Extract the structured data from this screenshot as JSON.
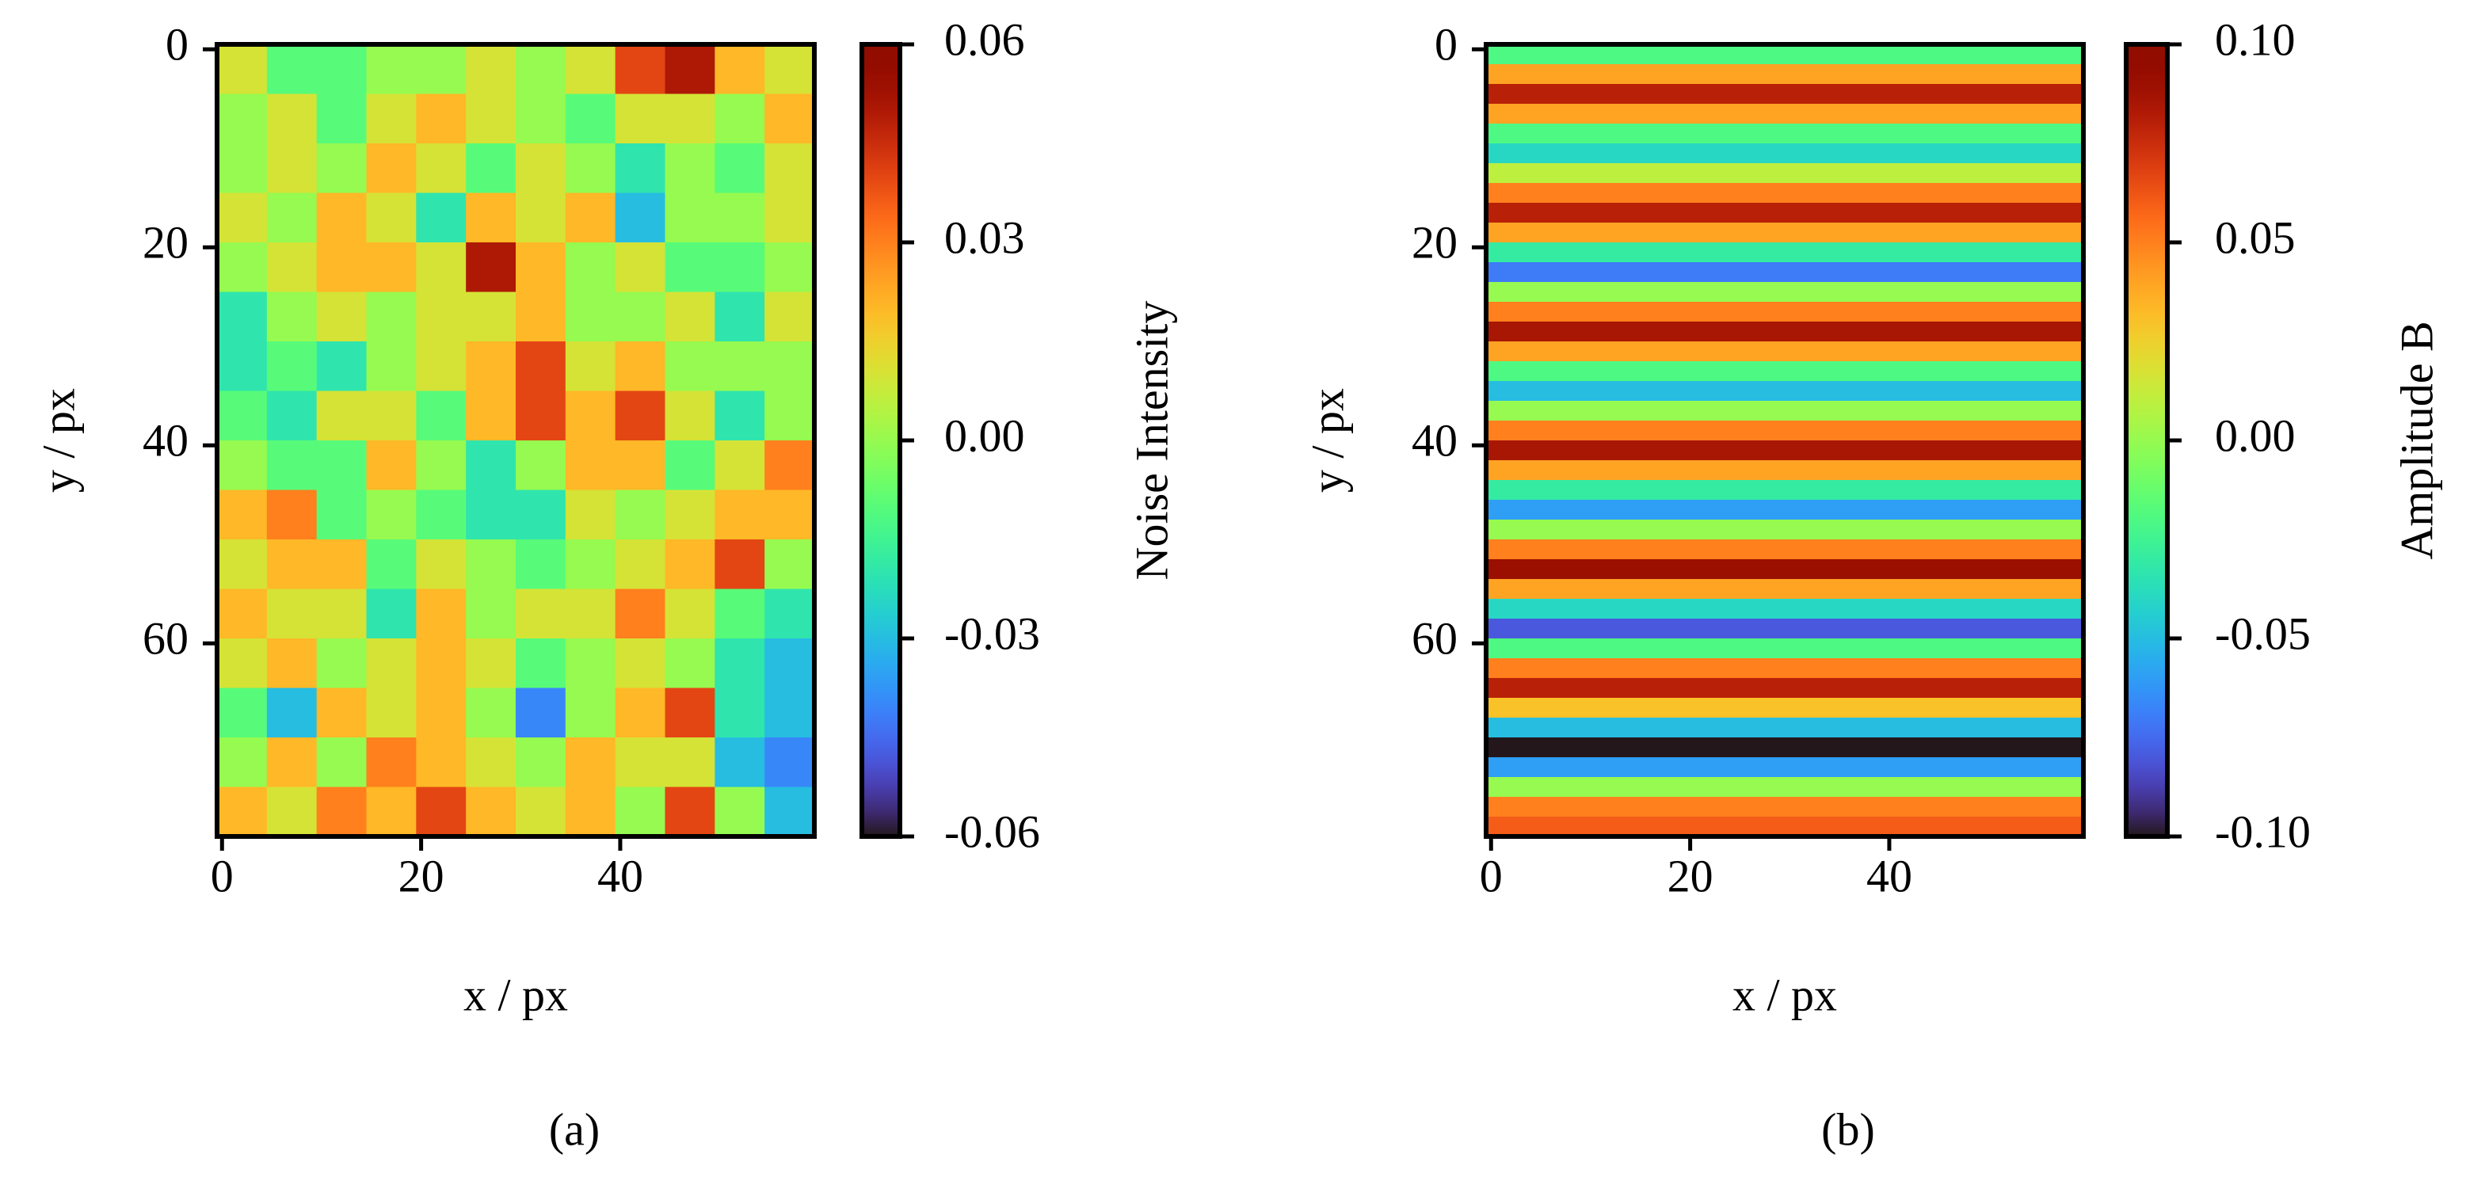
{
  "chart_data": [
    {
      "type": "heatmap",
      "colormap": "turbo",
      "xlabel": "x / px",
      "ylabel": "y / px",
      "colorbar_label": "Noise Intensity",
      "caption": "(a)",
      "xlim": [
        -0.5,
        59.5
      ],
      "ylim": [
        79.5,
        -0.5
      ],
      "xticks": [
        0,
        20,
        40
      ],
      "yticks": [
        0,
        20,
        40,
        60
      ],
      "x_bins": [
        -0.5,
        4.5,
        9.5,
        14.5,
        19.5,
        24.5,
        29.5,
        34.5,
        39.5,
        44.5,
        49.5,
        54.5,
        59.5
      ],
      "y_bins": [
        -0.5,
        4.5,
        9.5,
        14.5,
        19.5,
        24.5,
        29.5,
        34.5,
        39.5,
        44.5,
        49.5,
        54.5,
        59.5,
        64.5,
        69.5,
        74.5,
        79.5
      ],
      "clim": [
        -0.06,
        0.06
      ],
      "cticks": [
        0.06,
        0.03,
        {
          "value": 0,
          "label": "0.00"
        },
        -0.03,
        -0.06
      ],
      "z": [
        [
          0.01,
          -0.01,
          -0.01,
          0.0,
          0.0,
          0.01,
          0.0,
          0.01,
          0.04,
          0.05,
          0.02,
          0.01
        ],
        [
          0.0,
          0.01,
          -0.01,
          0.01,
          0.02,
          0.01,
          0.0,
          -0.01,
          0.01,
          0.01,
          0.0,
          0.02
        ],
        [
          0.0,
          0.01,
          0.0,
          0.02,
          0.01,
          -0.01,
          0.01,
          0.0,
          -0.02,
          0.0,
          -0.01,
          0.01
        ],
        [
          0.01,
          0.0,
          0.02,
          0.01,
          -0.02,
          0.02,
          0.01,
          0.02,
          -0.03,
          0.0,
          0.0,
          0.01
        ],
        [
          0.0,
          0.01,
          0.02,
          0.02,
          0.01,
          0.05,
          0.02,
          0.0,
          0.01,
          -0.01,
          -0.01,
          0.0
        ],
        [
          -0.02,
          0.0,
          0.01,
          0.0,
          0.01,
          0.01,
          0.02,
          0.0,
          0.0,
          0.01,
          -0.02,
          0.01
        ],
        [
          -0.02,
          -0.01,
          -0.02,
          0.0,
          0.01,
          0.02,
          0.04,
          0.01,
          0.02,
          0.0,
          0.0,
          0.0
        ],
        [
          -0.01,
          -0.02,
          0.01,
          0.01,
          -0.01,
          0.02,
          0.04,
          0.02,
          0.04,
          0.01,
          -0.02,
          0.0
        ],
        [
          0.0,
          -0.01,
          -0.01,
          0.02,
          0.0,
          -0.02,
          0.0,
          0.02,
          0.02,
          -0.01,
          0.01,
          0.03
        ],
        [
          0.02,
          0.03,
          -0.01,
          0.0,
          -0.01,
          -0.02,
          -0.02,
          0.01,
          0.0,
          0.01,
          0.02,
          0.02
        ],
        [
          0.01,
          0.02,
          0.02,
          -0.01,
          0.01,
          0.0,
          -0.01,
          0.0,
          0.01,
          0.02,
          0.04,
          0.0
        ],
        [
          0.02,
          0.01,
          0.01,
          -0.02,
          0.02,
          0.0,
          0.01,
          0.01,
          0.03,
          0.01,
          -0.01,
          -0.02
        ],
        [
          0.01,
          0.02,
          0.0,
          0.01,
          0.02,
          0.01,
          -0.01,
          0.0,
          0.01,
          0.0,
          -0.02,
          -0.03
        ],
        [
          -0.01,
          -0.03,
          0.02,
          0.01,
          0.02,
          0.0,
          -0.04,
          0.0,
          0.02,
          0.04,
          -0.02,
          -0.03
        ],
        [
          0.0,
          0.02,
          0.0,
          0.03,
          0.02,
          0.01,
          0.0,
          0.02,
          0.01,
          0.01,
          -0.03,
          -0.04
        ],
        [
          0.02,
          0.01,
          0.03,
          0.02,
          0.04,
          0.02,
          0.01,
          0.02,
          0.0,
          0.04,
          0.0,
          -0.03
        ]
      ]
    },
    {
      "type": "heatmap",
      "colormap": "turbo",
      "xlabel": "x / px",
      "ylabel": "y / px",
      "colorbar_label": "Amplitude B",
      "caption": "(b)",
      "xlim": [
        -0.5,
        59.5
      ],
      "ylim": [
        79.5,
        -0.5
      ],
      "xticks": [
        0,
        20,
        40
      ],
      "yticks": [
        0,
        20,
        40,
        60
      ],
      "x_bins": [
        -0.5,
        59.5
      ],
      "y_bins": [
        -0.5,
        1.5,
        3.5,
        5.5,
        7.5,
        9.5,
        11.5,
        13.5,
        15.5,
        17.5,
        19.5,
        21.5,
        23.5,
        25.5,
        27.5,
        29.5,
        31.5,
        33.5,
        35.5,
        37.5,
        39.5,
        41.5,
        43.5,
        45.5,
        47.5,
        49.5,
        51.5,
        53.5,
        55.5,
        57.5,
        59.5,
        61.5,
        63.5,
        65.5,
        67.5,
        69.5,
        71.5,
        73.5,
        75.5,
        77.5,
        79.5
      ],
      "clim": [
        -0.1,
        0.1
      ],
      "cticks": [
        {
          "value": 0.1,
          "label": "0.10"
        },
        0.05,
        {
          "value": 0,
          "label": "0.00"
        },
        -0.05,
        {
          "value": -0.1,
          "label": "-0.10"
        }
      ],
      "z": [
        [
          -0.02
        ],
        [
          0.04
        ],
        [
          0.08
        ],
        [
          0.04
        ],
        [
          -0.02
        ],
        [
          -0.04
        ],
        [
          0.01
        ],
        [
          0.05
        ],
        [
          0.08
        ],
        [
          0.04
        ],
        [
          -0.03
        ],
        [
          -0.07
        ],
        [
          0.0
        ],
        [
          0.05
        ],
        [
          0.085
        ],
        [
          0.04
        ],
        [
          -0.02
        ],
        [
          -0.05
        ],
        [
          0.0
        ],
        [
          0.05
        ],
        [
          0.085
        ],
        [
          0.04
        ],
        [
          -0.03
        ],
        [
          -0.06
        ],
        [
          0.0
        ],
        [
          0.05
        ],
        [
          0.09
        ],
        [
          0.04
        ],
        [
          -0.04
        ],
        [
          -0.08
        ],
        [
          -0.02
        ],
        [
          0.05
        ],
        [
          0.08
        ],
        [
          0.03
        ],
        [
          -0.05
        ],
        [
          -0.1
        ],
        [
          -0.06
        ],
        [
          0.0
        ],
        [
          0.05
        ],
        [
          0.06
        ]
      ]
    }
  ]
}
